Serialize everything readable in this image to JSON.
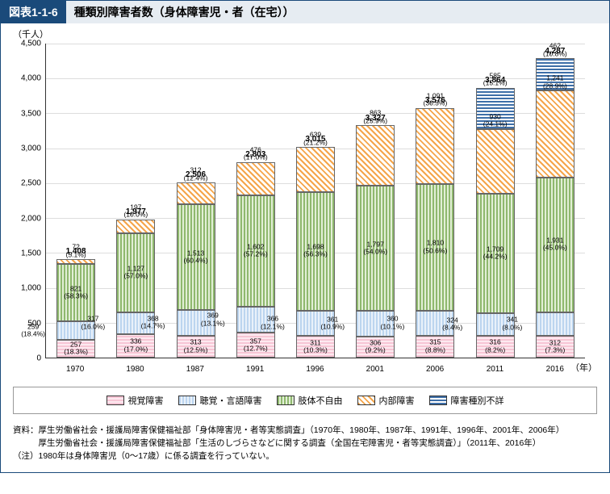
{
  "header": {
    "tag": "図表1-1-6",
    "title": "種類別障害者数（身体障害児・者（在宅））"
  },
  "chart": {
    "type": "bar",
    "y_unit": "（千人）",
    "x_unit": "（年）",
    "ymax": 4500,
    "ytick_step": 500,
    "categories": [
      "1970",
      "1980",
      "1987",
      "1991",
      "1996",
      "2001",
      "2006",
      "2011",
      "2016"
    ],
    "series": [
      {
        "key": "visual",
        "label": "視覚障害",
        "pattern": "pat-pink"
      },
      {
        "key": "hearing",
        "label": "聴覚・言語障害",
        "pattern": "pat-blue"
      },
      {
        "key": "limb",
        "label": "肢体不自由",
        "pattern": "pat-green"
      },
      {
        "key": "internal",
        "label": "内部障害",
        "pattern": "pat-orange"
      },
      {
        "key": "unknown",
        "label": "障害種別不詳",
        "pattern": "pat-dkblue"
      }
    ],
    "totals": [
      1408,
      1977,
      2506,
      2803,
      3015,
      3327,
      3576,
      3864,
      4287
    ],
    "data": {
      "visual": {
        "v": [
          257,
          336,
          313,
          357,
          311,
          306,
          315,
          316,
          312
        ],
        "p": [
          "18.3%",
          "17.0%",
          "12.5%",
          "12.7%",
          "10.3%",
          "9.2%",
          "8.8%",
          "8.2%",
          "7.3%"
        ]
      },
      "hearing": {
        "v": [
          259,
          317,
          368,
          369,
          366,
          361,
          360,
          324,
          341
        ],
        "p": [
          "18.4%",
          "16.0%",
          "14.7%",
          "13.1%",
          "12.1%",
          "10.9%",
          "10.1%",
          "8.4%",
          "8.0%"
        ]
      },
      "limb": {
        "v": [
          821,
          1127,
          1513,
          1602,
          1698,
          1797,
          1810,
          1709,
          1931
        ],
        "p": [
          "58.3%",
          "57.0%",
          "60.4%",
          "57.2%",
          "56.3%",
          "54.0%",
          "50.6%",
          "44.2%",
          "45.0%"
        ]
      },
      "internal": {
        "v": [
          72,
          197,
          312,
          476,
          639,
          863,
          1091,
          930,
          1241
        ],
        "p": [
          "5.1%",
          "10.0%",
          "12.4%",
          "17.0%",
          "21.2%",
          "25.9%",
          "30.5%",
          "24.1%",
          "28.9%"
        ]
      },
      "unknown": {
        "v": [
          0,
          0,
          0,
          0,
          0,
          0,
          0,
          585,
          462
        ],
        "p": [
          "",
          "",
          "",
          "",
          "",
          "",
          "",
          "15.1%",
          "10.8%"
        ]
      }
    },
    "hearing_label_x_offset": -30
  },
  "notes": {
    "source_lead": "資料：",
    "source_lines": [
      "厚生労働省社会・援護局障害保健福祉部「身体障害児・者等実態調査」（1970年、1980年、1987年、1991年、1996年、2001年、2006年）",
      "厚生労働省社会・援護局障害保健福祉部「生活のしづらさなどに関する調査（全国在宅障害児・者等実態調査）」（2011年、2016年）"
    ],
    "note_lead": "（注）",
    "note_line": "1980年は身体障害児（0～17歳）に係る調査を行っていない。"
  }
}
